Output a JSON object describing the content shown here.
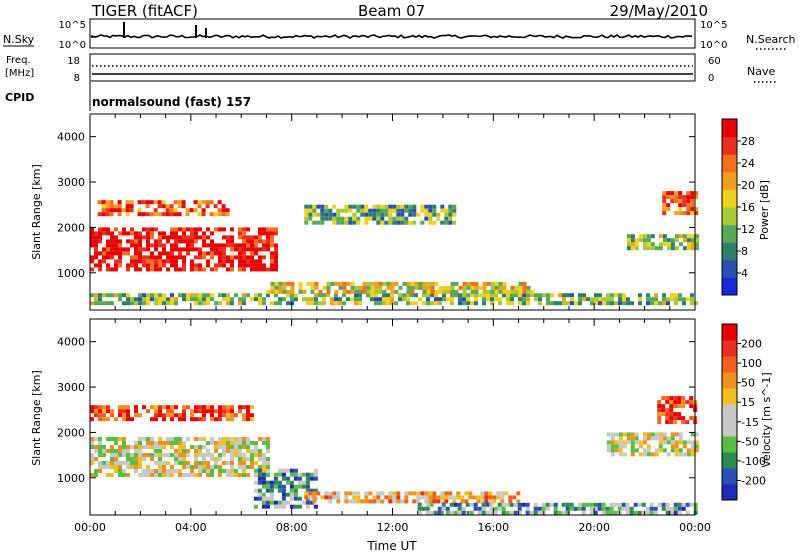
{
  "header": {
    "station": "TIGER (fitACF)",
    "beam": "Beam 07",
    "date": "29/May/2010"
  },
  "status_panels": {
    "nsky_label": "N.Sky",
    "nsky_ticks": [
      "10^5",
      "10^0"
    ],
    "nsearch_label": "N.Search",
    "nsearch_ticks": [
      "10^5",
      "10^0"
    ],
    "freq_label": "Freq.",
    "freq_unit": "[MHz]",
    "freq_ticks": [
      "18",
      "8"
    ],
    "nave_label": "Nave",
    "nave_ticks": [
      "60",
      "0"
    ],
    "cpid_label": "CPID",
    "cpid_value": "normalsound (fast) 157"
  },
  "chart_data": [
    {
      "type": "heatmap",
      "name": "power",
      "ylabel": "Slant Range [km]",
      "ylim": [
        180,
        4500
      ],
      "yticks": [
        "1000",
        "2000",
        "3000",
        "4000"
      ],
      "xlim": [
        0,
        24
      ],
      "colorbar": {
        "label": "Power [dB]",
        "ticks": [
          "4",
          "8",
          "12",
          "16",
          "20",
          "24",
          "28"
        ],
        "colors": [
          "#1428d8",
          "#2a4fb0",
          "#2f7e6a",
          "#58a858",
          "#a8c83c",
          "#f0d020",
          "#f0a020",
          "#f07020",
          "#e83020",
          "#e80000"
        ]
      },
      "echo_regions": [
        {
          "t0": 0.0,
          "t1": 7.3,
          "r0": 1100,
          "r1": 2000,
          "level": 0.95
        },
        {
          "t0": 0.3,
          "t1": 5.5,
          "r0": 2250,
          "r1": 2600,
          "level": 0.8
        },
        {
          "t0": 0.0,
          "t1": 24.0,
          "r0": 350,
          "r1": 550,
          "level": 0.4
        },
        {
          "t0": 7.0,
          "t1": 17.5,
          "r0": 550,
          "r1": 800,
          "level": 0.55
        },
        {
          "t0": 8.5,
          "t1": 14.5,
          "r0": 2100,
          "r1": 2500,
          "level": 0.35
        },
        {
          "t0": 21.3,
          "t1": 24.0,
          "r0": 1500,
          "r1": 1850,
          "level": 0.45
        },
        {
          "t0": 22.7,
          "t1": 24.0,
          "r0": 2300,
          "r1": 2800,
          "level": 0.8
        }
      ]
    },
    {
      "type": "heatmap",
      "name": "velocity",
      "ylabel": "Slant Range [km]",
      "xlabel": "Time UT",
      "ylim": [
        180,
        4500
      ],
      "yticks": [
        "1000",
        "2000",
        "3000",
        "4000"
      ],
      "xlim": [
        0,
        24
      ],
      "xticks": [
        "00:00",
        "04:00",
        "08:00",
        "12:00",
        "16:00",
        "20:00",
        "00:00"
      ],
      "colorbar": {
        "label": "Velocity [m s^-1]",
        "ticks": [
          "200",
          "100",
          "50",
          "15",
          "-15",
          "-50",
          "-100",
          "-200"
        ],
        "colors": [
          "#1e2ab4",
          "#2a50b4",
          "#2a8a50",
          "#58c040",
          "#c8c8c8",
          "#c8c8c8",
          "#f0c020",
          "#f09020",
          "#f06020",
          "#e83020",
          "#e80000"
        ]
      },
      "echo_regions": [
        {
          "t0": 0.0,
          "t1": 7.0,
          "r0": 1100,
          "r1": 1900,
          "level": 0.5
        },
        {
          "t0": 0.0,
          "t1": 6.5,
          "r0": 2250,
          "r1": 2600,
          "level": 0.85
        },
        {
          "t0": 6.5,
          "t1": 9.0,
          "r0": 400,
          "r1": 1200,
          "level": 0.25
        },
        {
          "t0": 8.5,
          "t1": 17.0,
          "r0": 450,
          "r1": 700,
          "level": 0.62
        },
        {
          "t0": 13.0,
          "t1": 24.0,
          "r0": 250,
          "r1": 450,
          "level": 0.3
        },
        {
          "t0": 20.5,
          "t1": 24.0,
          "r0": 1500,
          "r1": 2000,
          "level": 0.5
        },
        {
          "t0": 22.5,
          "t1": 24.0,
          "r0": 2200,
          "r1": 2800,
          "level": 0.9
        }
      ]
    }
  ]
}
